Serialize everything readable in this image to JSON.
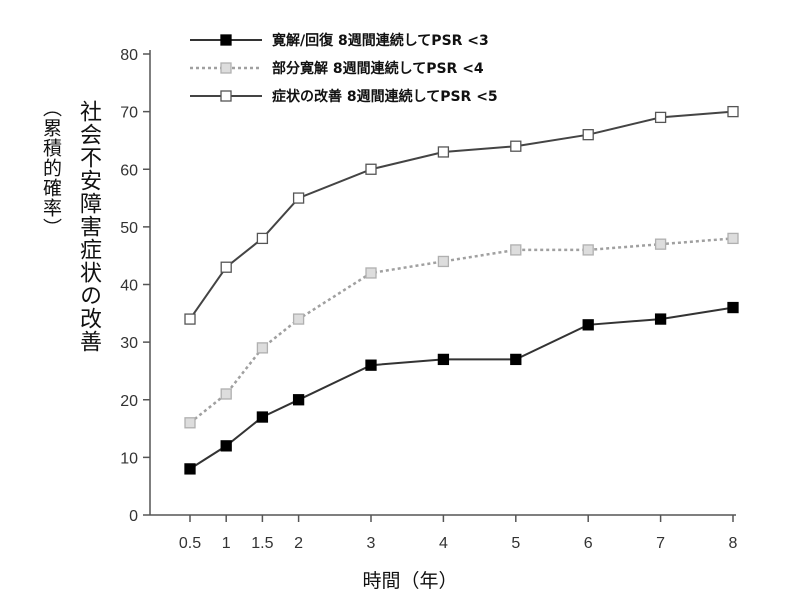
{
  "chart_data": {
    "type": "line",
    "title": "",
    "xlabel": "時間（年）",
    "ylabel": "社会不安障害症状の改善",
    "ylabel_sub": "（累積的確率）",
    "x": [
      0.5,
      1,
      1.5,
      2,
      3,
      4,
      5,
      6,
      7,
      8
    ],
    "x_tick_labels": [
      "0.5",
      "1",
      "1.5",
      "2",
      "3",
      "4",
      "5",
      "6",
      "7",
      "8"
    ],
    "y_ticks": [
      0,
      10,
      20,
      30,
      40,
      50,
      60,
      70,
      80
    ],
    "ylim": [
      0,
      80
    ],
    "grid": false,
    "legend_position": "top",
    "series": [
      {
        "name": "寛解/回復 8週間連続してPSR <3",
        "values": [
          8,
          12,
          17,
          20,
          26,
          27,
          27,
          33,
          34,
          36
        ],
        "line_color": "#333333",
        "marker_fill": "#000000",
        "marker_stroke": "#000000",
        "dashed": false
      },
      {
        "name": "部分寛解 8週間連続してPSR <4",
        "values": [
          16,
          21,
          29,
          34,
          42,
          44,
          46,
          46,
          47,
          48
        ],
        "line_color": "#a0a0a0",
        "marker_fill": "#dddddd",
        "marker_stroke": "#b0b0b0",
        "dashed": true
      },
      {
        "name": "症状の改善 8週間連続してPSR <5",
        "values": [
          34,
          43,
          48,
          55,
          60,
          63,
          64,
          66,
          69,
          70
        ],
        "line_color": "#444444",
        "marker_fill": "#ffffff",
        "marker_stroke": "#555555",
        "dashed": false
      }
    ]
  }
}
